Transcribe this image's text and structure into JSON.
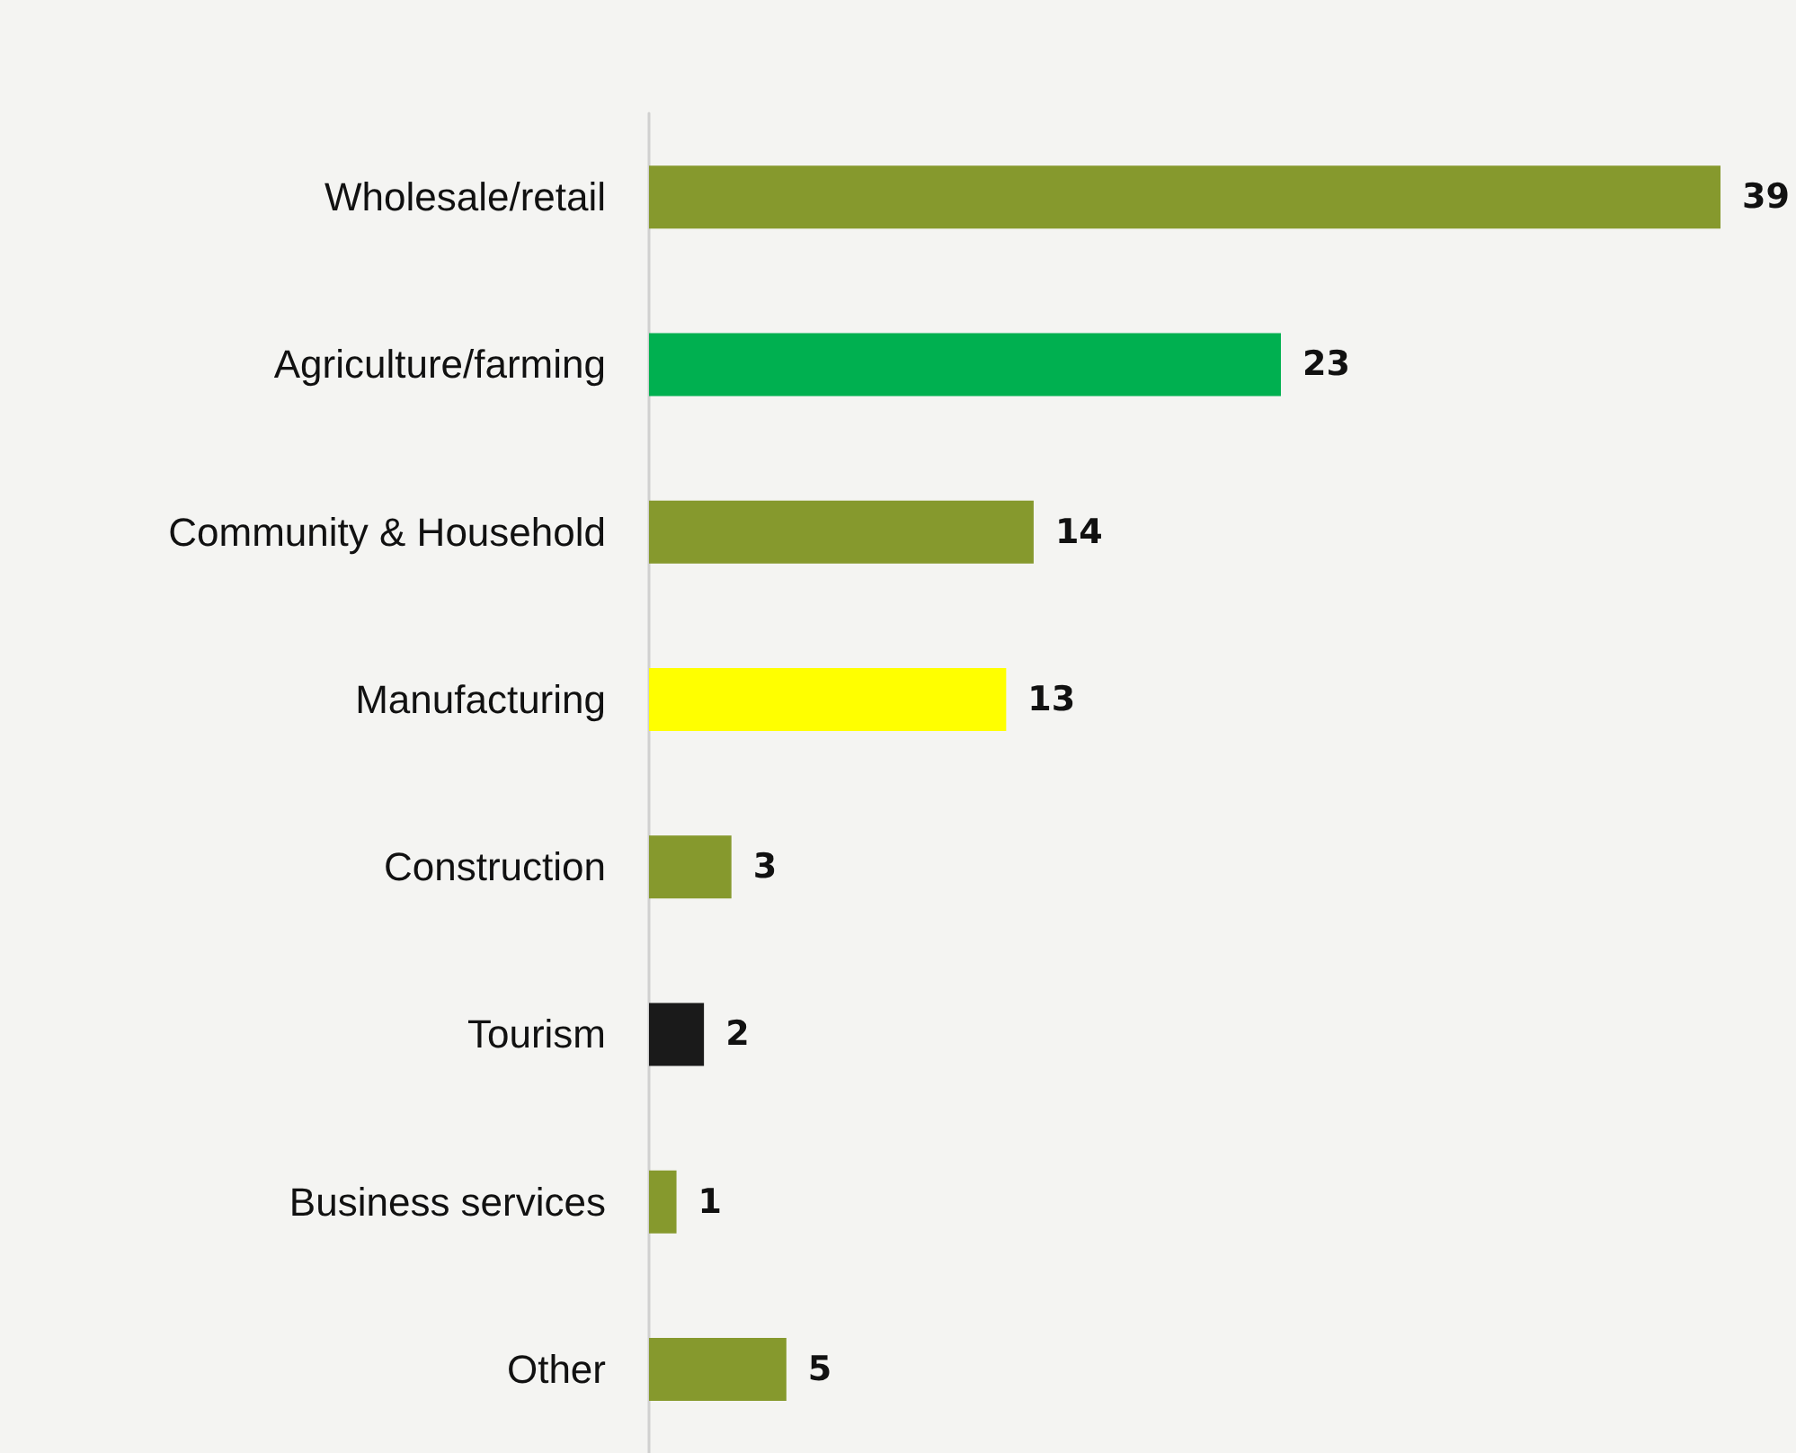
{
  "chart_data": {
    "type": "bar",
    "orientation": "horizontal",
    "categories": [
      "Wholesale/retail",
      "Agriculture/farming",
      "Community & Household",
      "Manufacturing",
      "Construction",
      "Tourism",
      "Business services",
      "Other"
    ],
    "values": [
      39,
      23,
      14,
      13,
      3,
      2,
      1,
      5
    ],
    "colors": [
      "#86992d",
      "#00b050",
      "#86992d",
      "#ffff00",
      "#86992d",
      "#1a1a1a",
      "#86992d",
      "#86992d"
    ],
    "data_labels": true
  }
}
